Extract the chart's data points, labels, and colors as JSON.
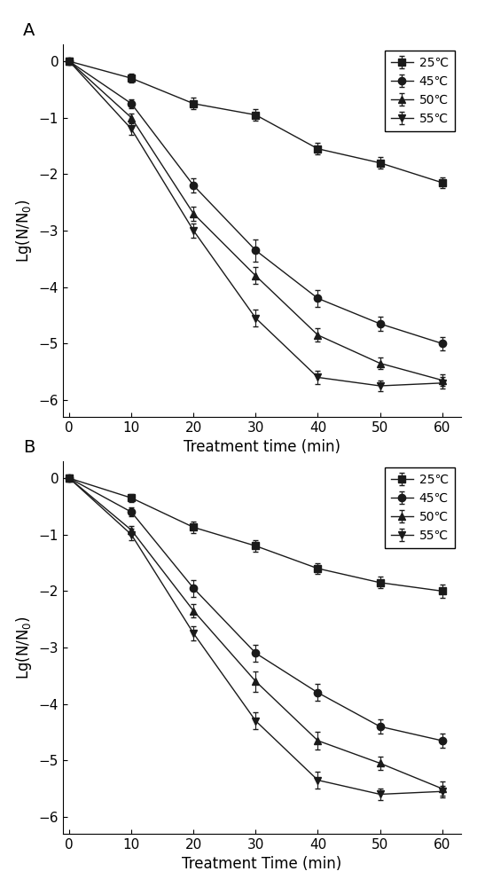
{
  "x": [
    0,
    10,
    20,
    30,
    40,
    50,
    60
  ],
  "panel_A": {
    "s25": {
      "y": [
        0,
        -0.3,
        -0.75,
        -0.95,
        -1.55,
        -1.8,
        -2.15
      ],
      "yerr": [
        0,
        0.08,
        0.1,
        0.1,
        0.1,
        0.1,
        0.1
      ]
    },
    "s45": {
      "y": [
        0,
        -0.75,
        -2.2,
        -3.35,
        -4.2,
        -4.65,
        -5.0
      ],
      "yerr": [
        0,
        0.08,
        0.12,
        0.2,
        0.15,
        0.12,
        0.12
      ]
    },
    "s50": {
      "y": [
        0,
        -1.0,
        -2.7,
        -3.8,
        -4.85,
        -5.35,
        -5.65
      ],
      "yerr": [
        0,
        0.08,
        0.12,
        0.15,
        0.12,
        0.1,
        0.1
      ]
    },
    "s55": {
      "y": [
        0,
        -1.2,
        -3.0,
        -4.55,
        -5.6,
        -5.75,
        -5.7
      ],
      "yerr": [
        0,
        0.1,
        0.12,
        0.15,
        0.12,
        0.1,
        0.1
      ]
    }
  },
  "panel_B": {
    "s25": {
      "y": [
        0,
        -0.35,
        -0.87,
        -1.2,
        -1.6,
        -1.85,
        -2.0
      ],
      "yerr": [
        0,
        0.07,
        0.1,
        0.1,
        0.1,
        0.1,
        0.12
      ]
    },
    "s45": {
      "y": [
        0,
        -0.6,
        -1.95,
        -3.1,
        -3.8,
        -4.4,
        -4.65
      ],
      "yerr": [
        0,
        0.08,
        0.15,
        0.15,
        0.15,
        0.12,
        0.12
      ]
    },
    "s50": {
      "y": [
        0,
        -0.92,
        -2.35,
        -3.6,
        -4.65,
        -5.05,
        -5.5
      ],
      "yerr": [
        0,
        0.08,
        0.12,
        0.18,
        0.15,
        0.12,
        0.12
      ]
    },
    "s55": {
      "y": [
        0,
        -1.0,
        -2.75,
        -4.3,
        -5.35,
        -5.6,
        -5.55
      ],
      "yerr": [
        0,
        0.1,
        0.12,
        0.15,
        0.15,
        0.1,
        0.1
      ]
    }
  },
  "xlabel_A": "Treatment time (min)",
  "xlabel_B": "Treatment Time (min)",
  "ylabel": "Lg(N/N$_0$)",
  "legend_labels": [
    "25℃",
    "45℃",
    "50℃",
    "55℃"
  ],
  "markers": [
    "s",
    "o",
    "^",
    "v"
  ],
  "color": "#1a1a1a",
  "ylim": [
    -6.3,
    0.3
  ],
  "xlim": [
    -1,
    63
  ],
  "yticks": [
    0,
    -1,
    -2,
    -3,
    -4,
    -5,
    -6
  ],
  "xticks": [
    0,
    10,
    20,
    30,
    40,
    50,
    60
  ],
  "label_A": "A",
  "label_B": "B",
  "markersize": 6,
  "linewidth": 1.0,
  "capsize": 2.5,
  "elinewidth": 0.8,
  "tick_fontsize": 11,
  "label_fontsize": 12,
  "legend_fontsize": 10,
  "panel_label_fontsize": 14
}
